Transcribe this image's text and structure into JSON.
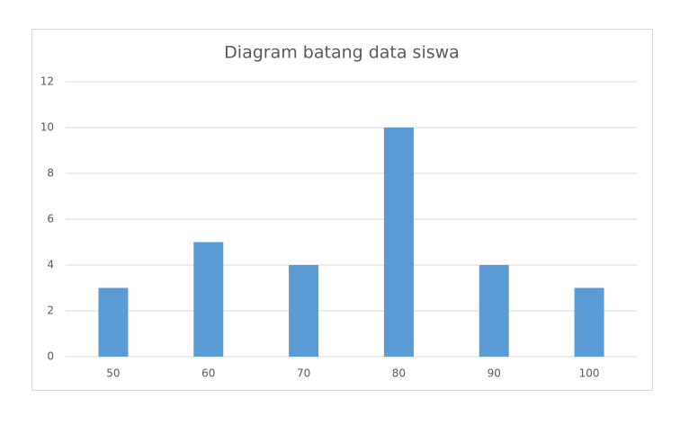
{
  "chart_data": {
    "type": "bar",
    "title": "Diagram batang data siswa",
    "categories": [
      "50",
      "60",
      "70",
      "80",
      "90",
      "100"
    ],
    "values": [
      3,
      5,
      4,
      10,
      4,
      3
    ],
    "color": "#5b9bd5",
    "ylim": [
      0,
      12
    ],
    "yticks": [
      0,
      2,
      4,
      6,
      8,
      10,
      12
    ],
    "grid": true
  }
}
